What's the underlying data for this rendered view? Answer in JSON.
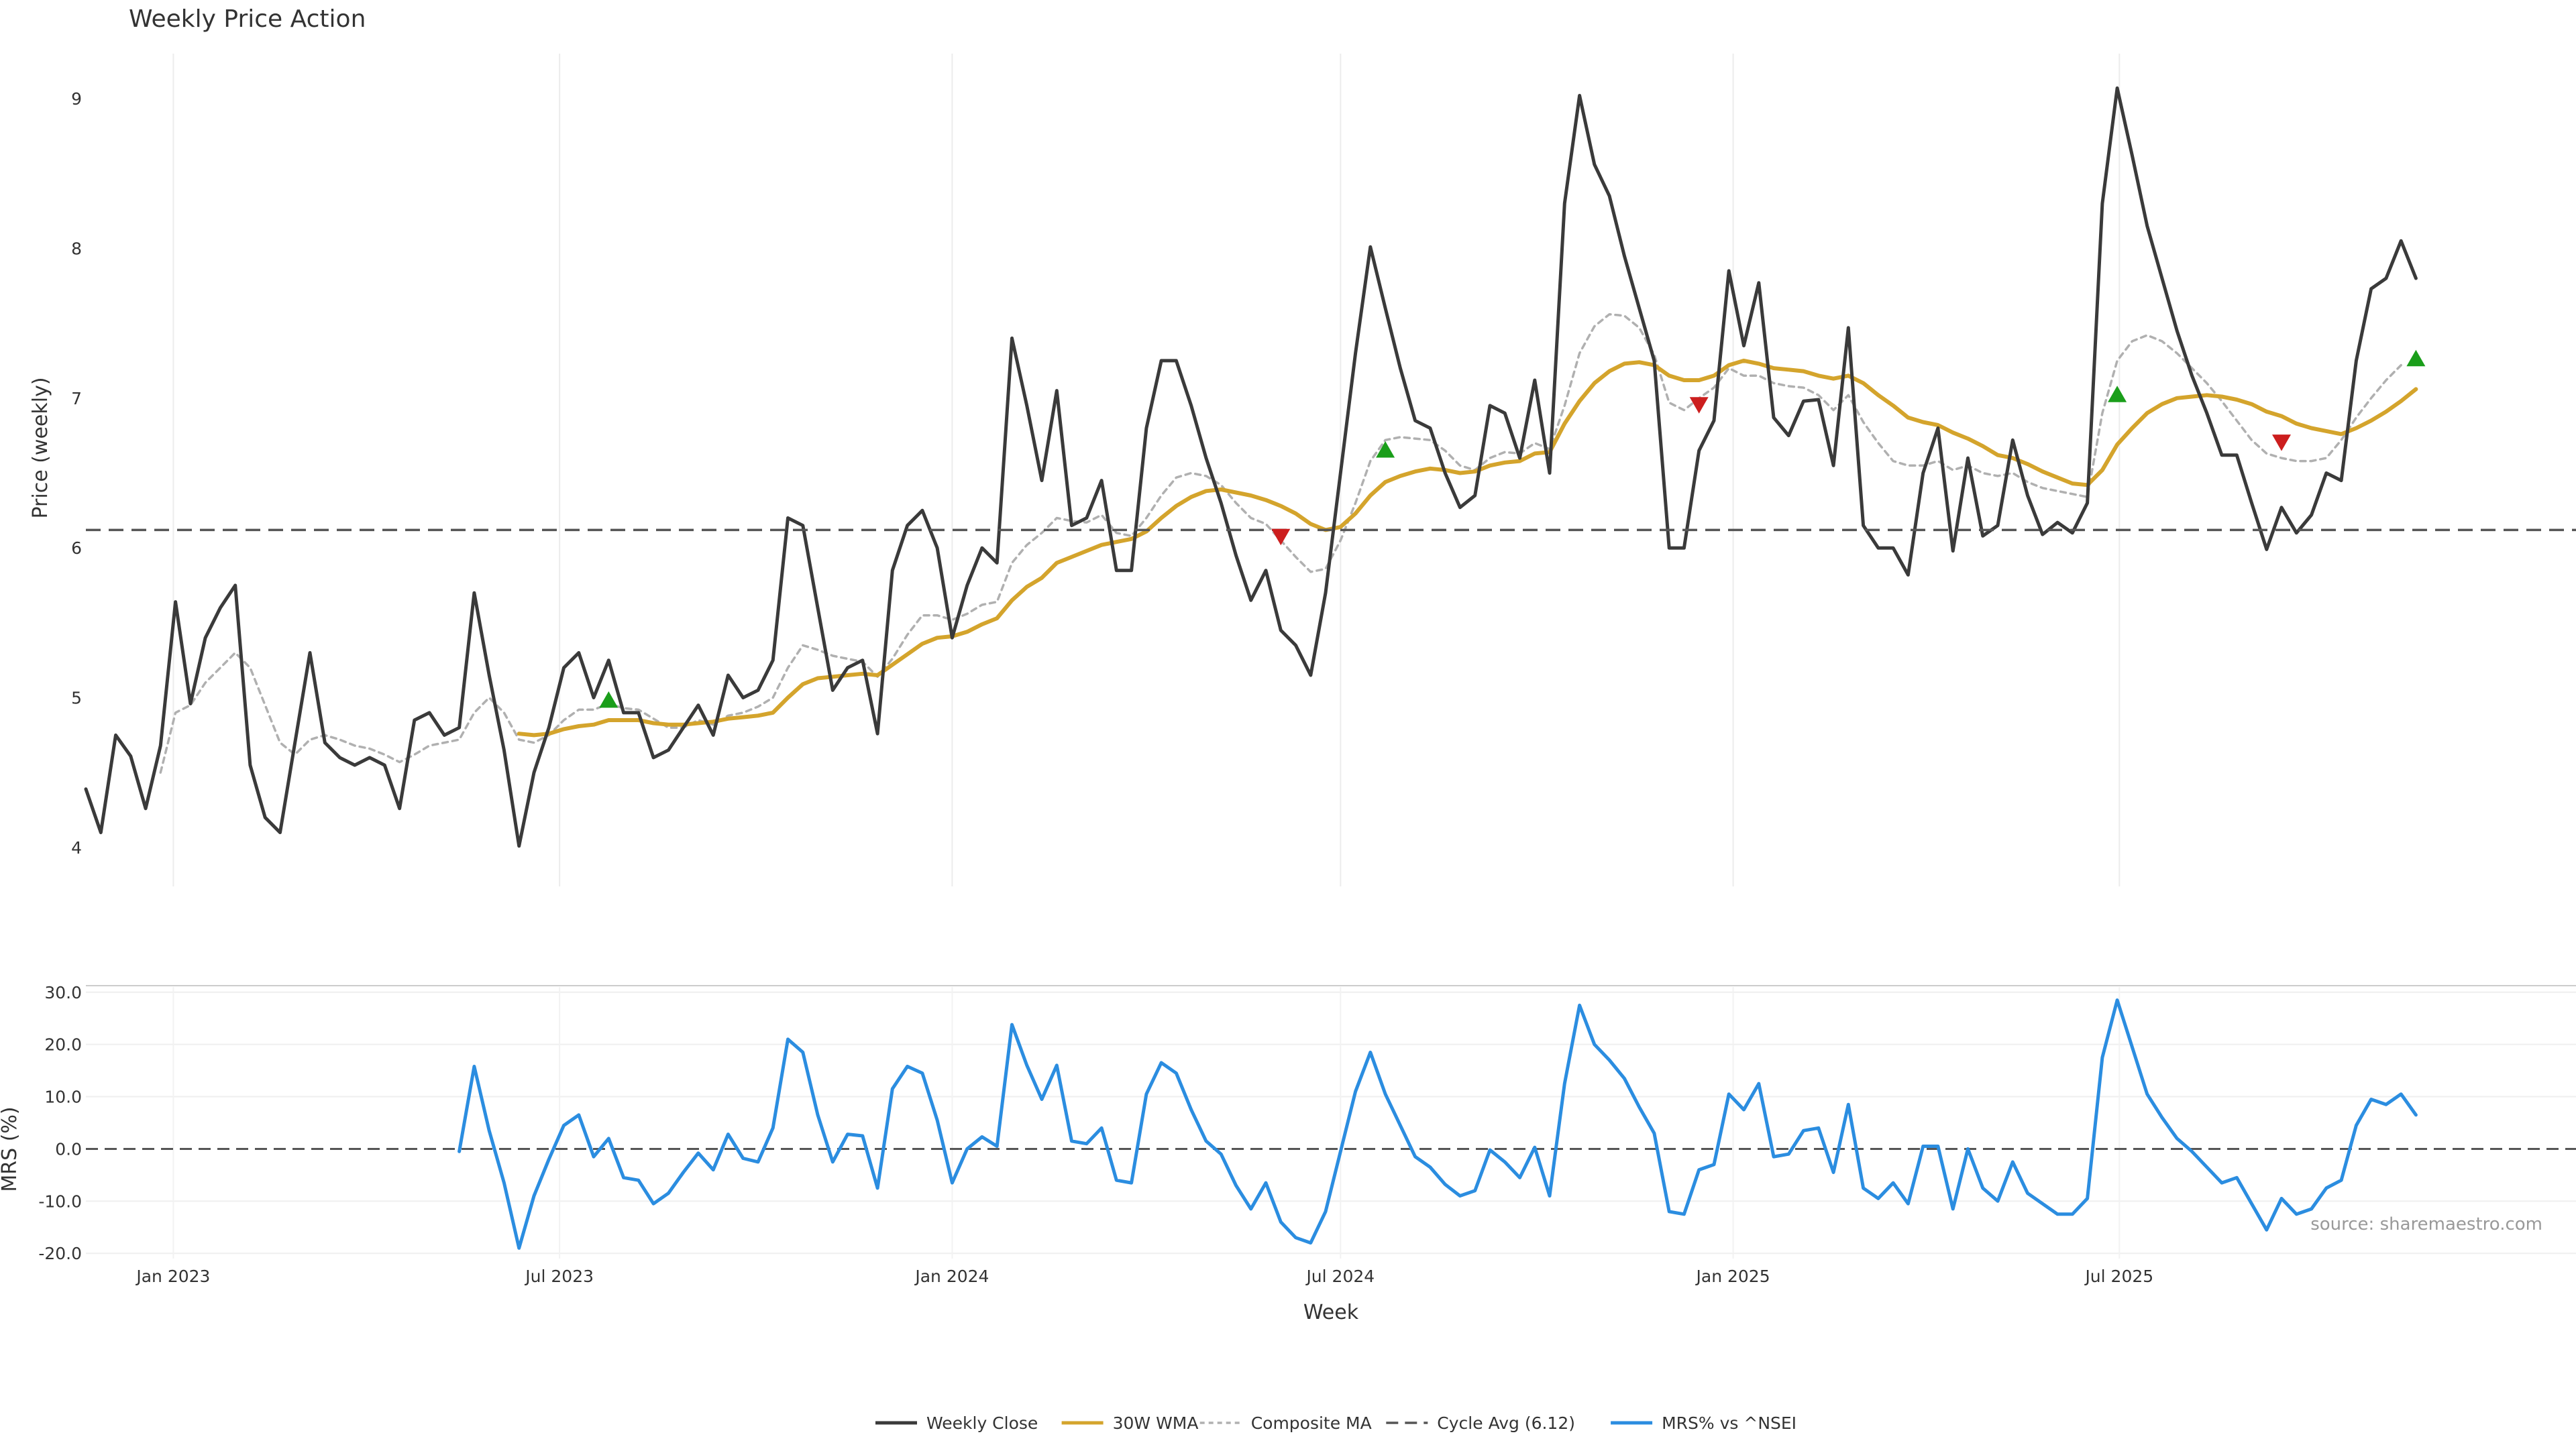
{
  "chart_data": [
    {
      "type": "line",
      "panel": "price",
      "title": "Weekly Price Action",
      "ylabel": "Price (weekly)",
      "ylim": [
        3.74,
        9.3
      ],
      "yticks": [
        "4",
        "5",
        "6",
        "7",
        "8",
        "9"
      ],
      "x_start_week": "2022-11-21",
      "x_interval_days": 7,
      "xlim": [
        "2022-11-21",
        "2026-01-31"
      ],
      "grid": "vertical",
      "series": [
        {
          "name": "Weekly Close",
          "color": "#3a3a3a",
          "values": [
            4.39,
            4.1,
            4.75,
            4.61,
            4.26,
            4.68,
            5.64,
            4.96,
            5.4,
            5.6,
            5.75,
            4.55,
            4.2,
            4.1,
            4.7,
            5.3,
            4.7,
            4.6,
            4.55,
            4.6,
            4.55,
            4.26,
            4.85,
            4.9,
            4.75,
            4.8,
            5.7,
            5.15,
            4.65,
            4.01,
            4.5,
            4.8,
            5.2,
            5.3,
            5.0,
            5.25,
            4.9,
            4.9,
            4.6,
            4.65,
            4.8,
            4.95,
            4.75,
            5.15,
            5.0,
            5.05,
            5.25,
            6.2,
            6.15,
            5.6,
            5.05,
            5.2,
            5.25,
            4.76,
            5.85,
            6.15,
            6.25,
            6.0,
            5.4,
            5.75,
            6.0,
            5.9,
            7.4,
            6.95,
            6.45,
            7.05,
            6.15,
            6.2,
            6.45,
            5.85,
            5.85,
            6.8,
            7.25,
            7.25,
            6.95,
            6.6,
            6.3,
            5.95,
            5.65,
            5.85,
            5.45,
            5.35,
            5.15,
            5.7,
            6.5,
            7.3,
            8.01,
            7.6,
            7.2,
            6.85,
            6.8,
            6.5,
            6.27,
            6.35,
            6.95,
            6.9,
            6.6,
            7.12,
            6.5,
            8.3,
            9.02,
            8.56,
            8.35,
            7.95,
            7.6,
            7.25,
            6.0,
            6.0,
            6.65,
            6.85,
            7.85,
            7.35,
            7.77,
            6.87,
            6.75,
            6.98,
            6.99,
            6.55,
            7.47,
            6.15,
            6.0,
            6.0,
            5.82,
            6.5,
            6.8,
            5.98,
            6.6,
            6.08,
            6.15,
            6.72,
            6.35,
            6.09,
            6.17,
            6.1,
            6.3,
            8.3,
            9.07,
            8.62,
            8.15,
            7.8,
            7.45,
            7.15,
            6.9,
            6.62,
            6.62,
            6.3,
            5.99,
            6.27,
            6.1,
            6.22,
            6.5,
            6.45,
            7.25,
            7.73,
            7.8,
            8.05,
            7.8
          ]
        },
        {
          "name": "30W WMA",
          "color": "#d4a42c",
          "values": [
            null,
            null,
            null,
            null,
            null,
            null,
            null,
            null,
            null,
            null,
            null,
            null,
            null,
            null,
            null,
            null,
            null,
            null,
            null,
            null,
            null,
            null,
            null,
            null,
            null,
            null,
            null,
            null,
            null,
            4.76,
            4.75,
            4.76,
            4.79,
            4.81,
            4.82,
            4.85,
            4.85,
            4.85,
            4.83,
            4.82,
            4.82,
            4.83,
            4.84,
            4.86,
            4.87,
            4.88,
            4.9,
            5.0,
            5.09,
            5.13,
            5.14,
            5.15,
            5.16,
            5.15,
            5.22,
            5.29,
            5.36,
            5.4,
            5.41,
            5.44,
            5.49,
            5.53,
            5.65,
            5.74,
            5.8,
            5.9,
            5.94,
            5.98,
            6.02,
            6.04,
            6.06,
            6.11,
            6.2,
            6.28,
            6.34,
            6.38,
            6.39,
            6.37,
            6.35,
            6.32,
            6.28,
            6.23,
            6.16,
            6.12,
            6.14,
            6.23,
            6.35,
            6.44,
            6.48,
            6.51,
            6.53,
            6.52,
            6.5,
            6.51,
            6.55,
            6.57,
            6.58,
            6.63,
            6.64,
            6.83,
            6.98,
            7.1,
            7.18,
            7.23,
            7.24,
            7.22,
            7.15,
            7.12,
            7.12,
            7.15,
            7.22,
            7.25,
            7.23,
            7.2,
            7.19,
            7.18,
            7.15,
            7.13,
            7.15,
            7.1,
            7.02,
            6.95,
            6.87,
            6.84,
            6.82,
            6.77,
            6.73,
            6.68,
            6.62,
            6.6,
            6.56,
            6.51,
            6.47,
            6.43,
            6.42,
            6.52,
            6.69,
            6.8,
            6.9,
            6.96,
            7.0,
            7.01,
            7.02,
            7.01,
            6.99,
            6.96,
            6.91,
            6.88,
            6.83,
            6.8,
            6.78,
            6.76,
            6.8,
            6.85,
            6.91,
            6.98,
            7.06
          ]
        },
        {
          "name": "Composite MA",
          "color": "#b0b0b0",
          "dashed": true,
          "values": [
            null,
            null,
            null,
            null,
            null,
            4.5,
            4.9,
            4.95,
            5.1,
            5.2,
            5.3,
            5.2,
            4.95,
            4.7,
            4.62,
            4.72,
            4.75,
            4.72,
            4.68,
            4.66,
            4.62,
            4.57,
            4.62,
            4.68,
            4.7,
            4.72,
            4.9,
            5.0,
            4.9,
            4.72,
            4.7,
            4.75,
            4.85,
            4.92,
            4.92,
            4.96,
            4.93,
            4.92,
            4.86,
            4.8,
            4.8,
            4.85,
            4.82,
            4.88,
            4.9,
            4.94,
            5.0,
            5.2,
            5.35,
            5.32,
            5.28,
            5.26,
            5.24,
            5.14,
            5.26,
            5.42,
            5.55,
            5.55,
            5.52,
            5.56,
            5.62,
            5.64,
            5.9,
            6.02,
            6.1,
            6.2,
            6.18,
            6.17,
            6.22,
            6.1,
            6.08,
            6.2,
            6.35,
            6.47,
            6.5,
            6.48,
            6.42,
            6.3,
            6.2,
            6.16,
            6.05,
            5.94,
            5.84,
            5.86,
            6.05,
            6.3,
            6.58,
            6.72,
            6.74,
            6.73,
            6.72,
            6.65,
            6.55,
            6.52,
            6.6,
            6.64,
            6.63,
            6.7,
            6.66,
            6.95,
            7.3,
            7.48,
            7.56,
            7.55,
            7.47,
            7.29,
            6.97,
            6.92,
            7.0,
            7.07,
            7.2,
            7.15,
            7.15,
            7.1,
            7.08,
            7.07,
            7.02,
            6.92,
            7.02,
            6.84,
            6.7,
            6.58,
            6.55,
            6.55,
            6.58,
            6.52,
            6.55,
            6.5,
            6.48,
            6.5,
            6.44,
            6.4,
            6.38,
            6.36,
            6.34,
            6.9,
            7.25,
            7.38,
            7.42,
            7.38,
            7.3,
            7.2,
            7.1,
            6.98,
            6.85,
            6.72,
            6.63,
            6.6,
            6.58,
            6.58,
            6.6,
            6.72,
            6.87,
            7.0,
            7.12,
            7.22
          ]
        },
        {
          "name": "Cycle Avg (6.12)",
          "color": "#555555",
          "dashed": true,
          "type": "hline",
          "y": 6.12
        }
      ],
      "signals": [
        {
          "type": "buy",
          "week_index": 35,
          "y": 4.98,
          "color": "#1a9e1a"
        },
        {
          "type": "sell",
          "week_index": 80,
          "y": 6.08,
          "color": "#cc1e1e"
        },
        {
          "type": "buy",
          "week_index": 87,
          "y": 6.65,
          "color": "#1a9e1a"
        },
        {
          "type": "sell",
          "week_index": 108,
          "y": 6.96,
          "color": "#cc1e1e"
        },
        {
          "type": "buy",
          "week_index": 136,
          "y": 7.02,
          "color": "#1a9e1a"
        },
        {
          "type": "sell",
          "week_index": 147,
          "y": 6.71,
          "color": "#cc1e1e"
        },
        {
          "type": "buy",
          "week_index": 156,
          "y": 7.26,
          "color": "#1a9e1a"
        }
      ]
    },
    {
      "type": "line",
      "panel": "mrs",
      "ylabel": "MRS (%)",
      "xlabel": "Week",
      "ylim": [
        -21,
        31
      ],
      "yticks": [
        "30.0",
        "20.0",
        "10.0",
        "0.0",
        "-10.0",
        "-20.0"
      ],
      "xticks": [
        {
          "label": "Jan 2023",
          "date": "2023-01-01"
        },
        {
          "label": "Jul 2023",
          "date": "2023-07-01"
        },
        {
          "label": "Jan 2024",
          "date": "2024-01-01"
        },
        {
          "label": "Jul 2024",
          "date": "2024-07-01"
        },
        {
          "label": "Jan 2025",
          "date": "2025-01-01"
        },
        {
          "label": "Jul 2025",
          "date": "2025-07-01"
        }
      ],
      "zero_line": true,
      "source": "source: sharemaestro.com",
      "series": [
        {
          "name": "MRS% vs ^NSEI",
          "color": "#2b8de0",
          "values": [
            null,
            null,
            null,
            null,
            null,
            null,
            null,
            null,
            null,
            null,
            null,
            null,
            null,
            null,
            null,
            null,
            null,
            null,
            null,
            null,
            null,
            null,
            null,
            null,
            null,
            -0.5,
            15.8,
            3.5,
            -6.5,
            -19.0,
            -9.0,
            -2.0,
            4.5,
            6.5,
            -1.5,
            2.0,
            -5.5,
            -6.0,
            -10.5,
            -8.5,
            -4.5,
            -0.8,
            -4.0,
            2.8,
            -1.8,
            -2.5,
            4.0,
            21.0,
            18.5,
            6.5,
            -2.5,
            2.8,
            2.5,
            -7.5,
            11.5,
            15.8,
            14.5,
            5.5,
            -6.5,
            0.0,
            2.3,
            0.5,
            23.8,
            16.0,
            9.5,
            16.0,
            1.5,
            1.0,
            4.0,
            -6.0,
            -6.5,
            10.5,
            16.5,
            14.5,
            7.5,
            1.5,
            -1.0,
            -7.0,
            -11.5,
            -6.5,
            -14.0,
            -17.0,
            -18.0,
            -12.0,
            -0.5,
            11.0,
            18.5,
            10.5,
            4.5,
            -1.5,
            -3.5,
            -6.8,
            -9.0,
            -8.0,
            -0.2,
            -2.5,
            -5.5,
            0.3,
            -9.0,
            12.5,
            27.5,
            20.0,
            17.0,
            13.5,
            8.0,
            3.0,
            -12.0,
            -12.5,
            -4.0,
            -3.0,
            10.5,
            7.5,
            12.5,
            -1.5,
            -1.0,
            3.5,
            4.0,
            -4.5,
            8.5,
            -7.5,
            -9.5,
            -6.5,
            -10.5,
            0.5,
            0.5,
            -11.5,
            0.0,
            -7.5,
            -10.0,
            -2.5,
            -8.5,
            -10.5,
            -12.5,
            -12.5,
            -9.5,
            17.5,
            28.5,
            19.5,
            10.5,
            6.0,
            2.0,
            -0.5,
            -3.5,
            -6.5,
            -5.5,
            -10.5,
            -15.5,
            -9.5,
            -12.5,
            -11.5,
            -7.5,
            -6.0,
            4.5,
            9.5,
            8.5,
            10.5,
            6.5
          ]
        }
      ]
    }
  ],
  "legend": {
    "placement": "bottom-center",
    "items": [
      {
        "label": "Weekly Close",
        "color": "#3a3a3a",
        "style": "solid"
      },
      {
        "label": "30W WMA",
        "color": "#d4a42c",
        "style": "solid"
      },
      {
        "label": "Composite MA",
        "color": "#b0b0b0",
        "style": "dotted"
      },
      {
        "label": "Cycle Avg (6.12)",
        "color": "#555555",
        "style": "dashed"
      },
      {
        "label": "MRS% vs ^NSEI",
        "color": "#2b8de0",
        "style": "solid"
      }
    ]
  }
}
